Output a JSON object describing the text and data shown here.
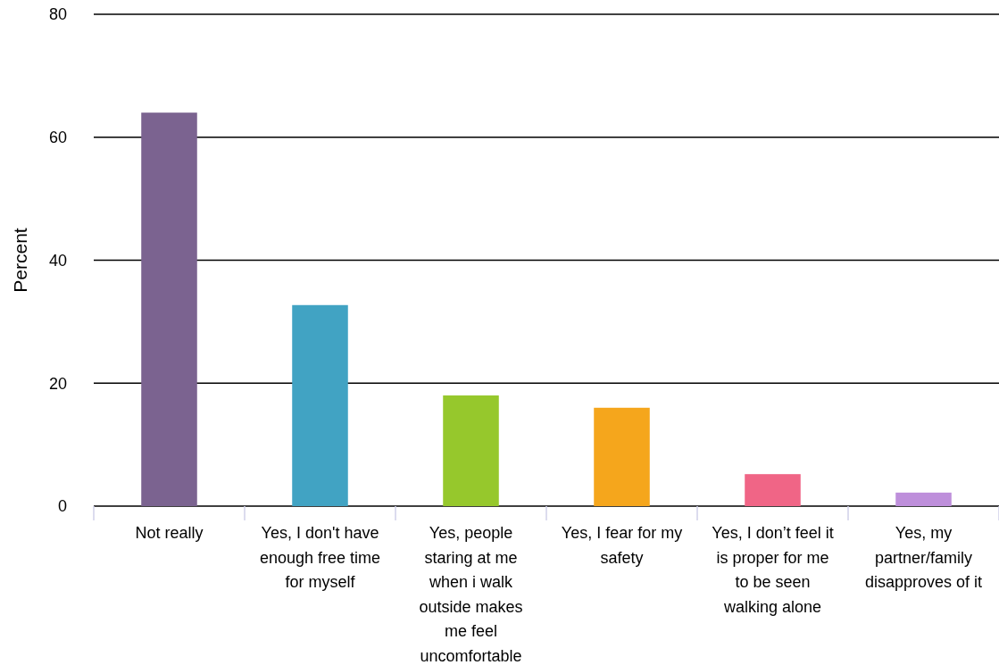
{
  "chart_data": {
    "type": "bar",
    "ylabel": "Percent",
    "categories": [
      "Not really",
      "Yes, I don't have enough free time for myself",
      "Yes, people staring at me when i walk outside makes me feel uncomfortable",
      "Yes, I fear for my safety",
      "Yes, I don’t feel it is proper for me to be seen walking alone",
      "Yes, my partner/family disapproves of it"
    ],
    "values": [
      64,
      32.7,
      18,
      16,
      5.2,
      2.2
    ],
    "colors": [
      "#7b6390",
      "#41a3c3",
      "#96c82c",
      "#f5a61c",
      "#f06586",
      "#be8fdb"
    ],
    "ylim": [
      0,
      80
    ],
    "yticks": [
      0,
      20,
      40,
      60,
      80
    ],
    "grid": "y"
  }
}
